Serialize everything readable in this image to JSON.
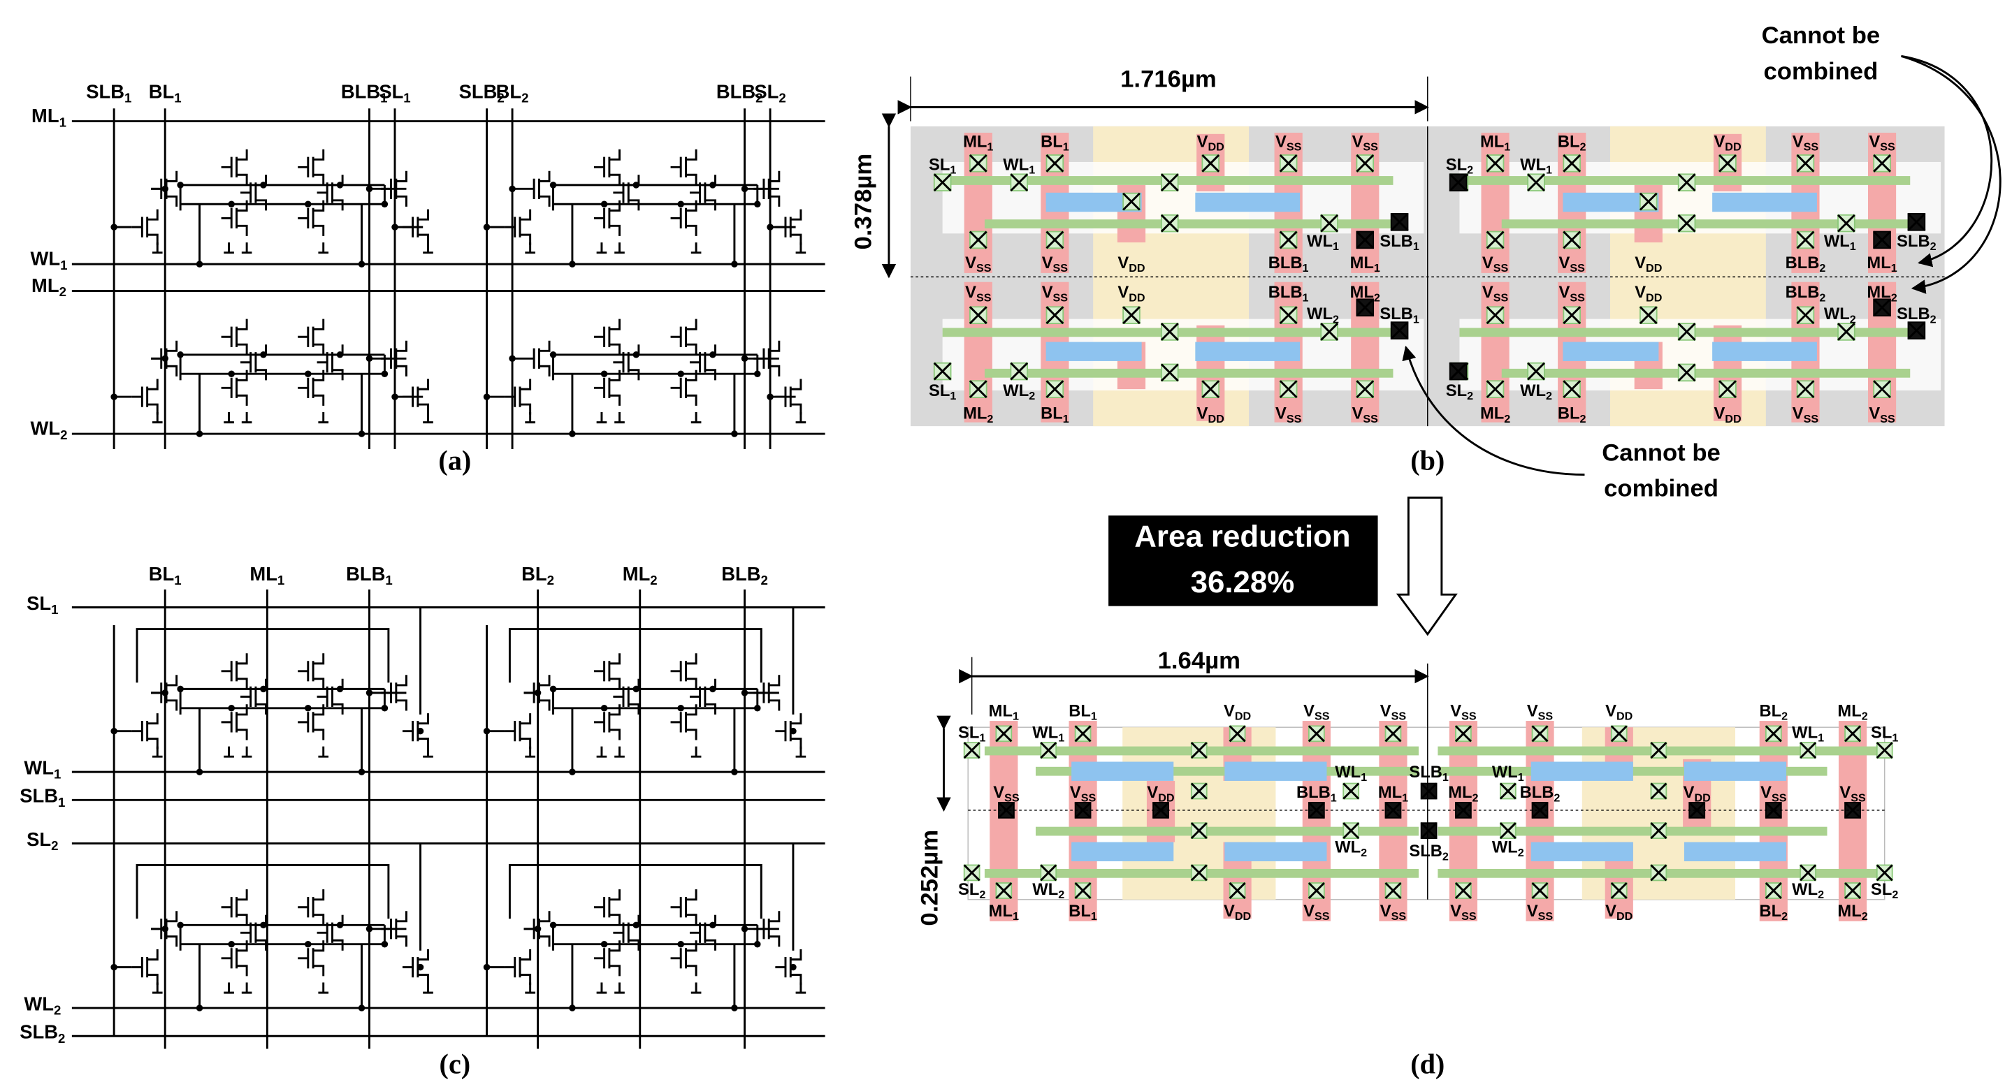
{
  "panel_a": {
    "caption": "(a)",
    "column_labels": [
      [
        "SLB",
        "1"
      ],
      [
        "BL",
        "1"
      ],
      [
        "BLB",
        "1"
      ],
      [
        "SL",
        "1"
      ],
      [
        "SLB",
        "2"
      ],
      [
        "BL",
        "2"
      ],
      [
        "BLB",
        "2"
      ],
      [
        "SL",
        "2"
      ]
    ],
    "row_labels": [
      [
        "ML",
        "1"
      ],
      [
        "WL",
        "1"
      ],
      [
        "ML",
        "2"
      ],
      [
        "WL",
        "2"
      ]
    ]
  },
  "panel_b": {
    "caption": "(b)",
    "width": "1.716µm",
    "height": "0.378µm",
    "layout_labels": [
      [
        "ML",
        "1"
      ],
      [
        "BL",
        "1"
      ],
      [
        "V",
        "DD"
      ],
      [
        "V",
        "SS"
      ],
      [
        "V",
        "SS"
      ],
      [
        "SL",
        "1"
      ],
      [
        "WL",
        "1"
      ],
      [
        "WL",
        "1"
      ],
      [
        "SLB",
        "1"
      ],
      [
        "V",
        "SS"
      ],
      [
        "V",
        "SS"
      ],
      [
        "V",
        "DD"
      ],
      [
        "BLB",
        "1"
      ],
      [
        "ML",
        "1"
      ],
      [
        "V",
        "SS"
      ],
      [
        "V",
        "SS"
      ],
      [
        "V",
        "DD"
      ],
      [
        "BLB",
        "1"
      ],
      [
        "ML",
        "2"
      ],
      [
        "WL",
        "2"
      ],
      [
        "SLB",
        "1"
      ],
      [
        "SL",
        "1"
      ],
      [
        "WL",
        "2"
      ],
      [
        "ML",
        "2"
      ],
      [
        "BL",
        "1"
      ],
      [
        "V",
        "DD"
      ],
      [
        "V",
        "SS"
      ],
      [
        "V",
        "SS"
      ],
      [
        "ML",
        "1"
      ],
      [
        "BL",
        "2"
      ],
      [
        "V",
        "DD"
      ],
      [
        "V",
        "SS"
      ],
      [
        "V",
        "SS"
      ],
      [
        "SL",
        "2"
      ],
      [
        "WL",
        "1"
      ],
      [
        "WL",
        "1"
      ],
      [
        "SLB",
        "2"
      ],
      [
        "V",
        "SS"
      ],
      [
        "V",
        "SS"
      ],
      [
        "V",
        "DD"
      ],
      [
        "BLB",
        "2"
      ],
      [
        "ML",
        "1"
      ],
      [
        "V",
        "SS"
      ],
      [
        "V",
        "SS"
      ],
      [
        "V",
        "DD"
      ],
      [
        "BLB",
        "2"
      ],
      [
        "ML",
        "2"
      ],
      [
        "WL",
        "2"
      ],
      [
        "SLB",
        "2"
      ],
      [
        "SL",
        "2"
      ],
      [
        "WL",
        "2"
      ],
      [
        "ML",
        "2"
      ],
      [
        "BL",
        "2"
      ],
      [
        "V",
        "DD"
      ],
      [
        "V",
        "SS"
      ],
      [
        "V",
        "SS"
      ]
    ],
    "notes": [
      [
        "Cannot be",
        "combined"
      ],
      [
        "Cannot be",
        "combined"
      ]
    ]
  },
  "transition": {
    "text": [
      "Area reduction",
      "36.28%"
    ]
  },
  "panel_c": {
    "caption": "(c)",
    "column_labels": [
      [
        "BL",
        "1"
      ],
      [
        "ML",
        "1"
      ],
      [
        "BLB",
        "1"
      ],
      [
        "BL",
        "2"
      ],
      [
        "ML",
        "2"
      ],
      [
        "BLB",
        "2"
      ]
    ],
    "row_labels": [
      [
        "SL",
        "1"
      ],
      [
        "WL",
        "1"
      ],
      [
        "SLB",
        "1"
      ],
      [
        "SL",
        "2"
      ],
      [
        "WL",
        "2"
      ],
      [
        "SLB",
        "2"
      ]
    ]
  },
  "panel_d": {
    "caption": "(d)",
    "width": "1.64µm",
    "height": "0.252µm",
    "layout_labels": [
      [
        "ML",
        "1"
      ],
      [
        "BL",
        "1"
      ],
      [
        "V",
        "DD"
      ],
      [
        "V",
        "SS"
      ],
      [
        "V",
        "SS"
      ],
      [
        "V",
        "SS"
      ],
      [
        "V",
        "SS"
      ],
      [
        "V",
        "DD"
      ],
      [
        "BL",
        "2"
      ],
      [
        "ML",
        "2"
      ],
      [
        "SL",
        "1"
      ],
      [
        "WL",
        "1"
      ],
      [
        "WL",
        "1"
      ],
      [
        "SL",
        "1"
      ],
      [
        "WL",
        "1"
      ],
      [
        "SLB",
        "1"
      ],
      [
        "WL",
        "1"
      ],
      [
        "V",
        "SS"
      ],
      [
        "V",
        "SS"
      ],
      [
        "V",
        "DD"
      ],
      [
        "BLB",
        "1"
      ],
      [
        "ML",
        "1"
      ],
      [
        "ML",
        "2"
      ],
      [
        "BLB",
        "2"
      ],
      [
        "V",
        "DD"
      ],
      [
        "V",
        "SS"
      ],
      [
        "V",
        "SS"
      ],
      [
        "WL",
        "2"
      ],
      [
        "SLB",
        "2"
      ],
      [
        "WL",
        "2"
      ],
      [
        "SL",
        "2"
      ],
      [
        "WL",
        "2"
      ],
      [
        "WL",
        "2"
      ],
      [
        "SL",
        "2"
      ],
      [
        "ML",
        "1"
      ],
      [
        "BL",
        "1"
      ],
      [
        "V",
        "DD"
      ],
      [
        "V",
        "SS"
      ],
      [
        "V",
        "SS"
      ],
      [
        "V",
        "SS"
      ],
      [
        "V",
        "SS"
      ],
      [
        "V",
        "DD"
      ],
      [
        "BL",
        "2"
      ],
      [
        "ML",
        "2"
      ]
    ]
  }
}
